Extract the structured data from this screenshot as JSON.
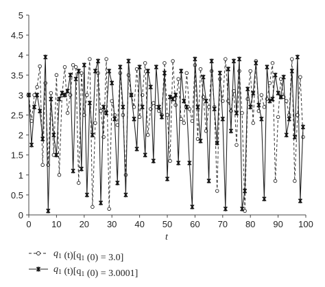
{
  "chart_data": {
    "type": "line",
    "title": "",
    "xlabel": "t",
    "ylabel": "",
    "xlim": [
      0,
      100
    ],
    "ylim": [
      0,
      5
    ],
    "xticks": [
      0,
      10,
      20,
      30,
      40,
      50,
      60,
      70,
      80,
      90,
      100
    ],
    "yticks": [
      0,
      0.5,
      1,
      1.5,
      2,
      2.5,
      3,
      3.5,
      4,
      4.5,
      5
    ],
    "grid": false,
    "legend_position": "bottom-left",
    "series": [
      {
        "name": "q1 (t)[q1 (0) = 3.0]",
        "style": "dashed-open-circle",
        "color": "#333333",
        "x": [
          0,
          1,
          2,
          3,
          4,
          5,
          6,
          7,
          8,
          9,
          10,
          11,
          12,
          13,
          14,
          15,
          16,
          17,
          18,
          19,
          20,
          21,
          22,
          23,
          24,
          25,
          26,
          27,
          28,
          29,
          30,
          31,
          32,
          33,
          34,
          35,
          36,
          37,
          38,
          39,
          40,
          41,
          42,
          43,
          44,
          45,
          46,
          47,
          48,
          49,
          50,
          51,
          52,
          53,
          54,
          55,
          56,
          57,
          58,
          59,
          60,
          61,
          62,
          63,
          64,
          65,
          66,
          67,
          68,
          69,
          70,
          71,
          72,
          73,
          74,
          75,
          76,
          77,
          78,
          79,
          80,
          81,
          82,
          83,
          84,
          85,
          86,
          87,
          88,
          89,
          90,
          91,
          92,
          93,
          94,
          95,
          96,
          97,
          98,
          99
        ],
        "y": [
          3.0,
          2.35,
          3.0,
          3.2,
          3.72,
          1.25,
          3.3,
          1.25,
          3.05,
          1.5,
          3.5,
          1.0,
          3.0,
          3.7,
          2.55,
          3.0,
          3.75,
          3.7,
          0.8,
          3.55,
          2.5,
          3.0,
          3.9,
          0.2,
          2.3,
          3.55,
          2.6,
          1.95,
          3.9,
          0.15,
          2.85,
          2.5,
          2.25,
          3.55,
          2.5,
          1.0,
          3.5,
          3.0,
          2.7,
          3.65,
          2.45,
          3.0,
          3.8,
          2.0,
          2.65,
          2.8,
          2.7,
          2.6,
          2.5,
          3.8,
          2.5,
          1.35,
          3.85,
          2.75,
          3.4,
          2.4,
          2.3,
          3.55,
          2.65,
          2.35,
          3.75,
          1.9,
          3.65,
          2.95,
          2.1,
          2.7,
          3.6,
          2.7,
          0.6,
          3.4,
          2.85,
          3.9,
          2.85,
          2.6,
          3.1,
          1.75,
          3.6,
          2.55,
          0.1,
          2.9,
          3.6,
          2.3,
          3.85,
          2.6,
          3.0,
          2.7,
          2.9,
          3.3,
          3.8,
          0.85,
          2.45,
          3.4,
          2.95,
          2.85,
          2.5,
          3.9,
          0.85,
          2.5,
          3.45,
          1.95
        ]
      },
      {
        "name": "q1 (t)[q1 (0) = 3.0001]",
        "style": "solid-star",
        "color": "#222222",
        "x": [
          0,
          1,
          2,
          3,
          4,
          5,
          6,
          7,
          8,
          9,
          10,
          11,
          12,
          13,
          14,
          15,
          16,
          17,
          18,
          19,
          20,
          21,
          22,
          23,
          24,
          25,
          26,
          27,
          28,
          29,
          30,
          31,
          32,
          33,
          34,
          35,
          36,
          37,
          38,
          39,
          40,
          41,
          42,
          43,
          44,
          45,
          46,
          47,
          48,
          49,
          50,
          51,
          52,
          53,
          54,
          55,
          56,
          57,
          58,
          59,
          60,
          61,
          62,
          63,
          64,
          65,
          66,
          67,
          68,
          69,
          70,
          71,
          72,
          73,
          74,
          75,
          76,
          77,
          78,
          79,
          80,
          81,
          82,
          83,
          84,
          85,
          86,
          87,
          88,
          89,
          90,
          91,
          92,
          93,
          94,
          95,
          96,
          97,
          98,
          99
        ],
        "y": [
          3.0,
          1.75,
          2.7,
          3.0,
          2.6,
          1.9,
          3.95,
          0.1,
          2.9,
          2.0,
          1.5,
          2.9,
          3.05,
          3.0,
          3.1,
          3.5,
          1.1,
          3.4,
          3.6,
          1.15,
          3.75,
          0.5,
          2.8,
          2.0,
          3.6,
          3.85,
          0.3,
          2.7,
          2.55,
          3.6,
          3.3,
          2.4,
          0.8,
          3.7,
          2.7,
          0.5,
          3.85,
          3.0,
          2.4,
          1.65,
          3.7,
          2.7,
          1.5,
          3.6,
          3.2,
          1.35,
          3.7,
          2.7,
          2.45,
          3.55,
          0.9,
          2.95,
          2.9,
          3.0,
          1.3,
          3.6,
          2.85,
          2.7,
          1.3,
          0.2,
          3.9,
          2.7,
          1.85,
          3.45,
          2.85,
          0.85,
          3.85,
          2.65,
          1.8,
          3.55,
          2.4,
          0.15,
          3.65,
          2.1,
          3.85,
          2.55,
          3.9,
          0.15,
          0.6,
          3.15,
          2.7,
          3.05,
          3.8,
          2.75,
          2.4,
          0.4,
          3.7,
          2.85,
          2.9,
          3.5,
          3.05,
          2.95,
          3.45,
          2.0,
          2.4,
          3.6,
          1.95,
          3.95,
          0.35,
          2.2
        ]
      }
    ],
    "legend": [
      {
        "prefix": "q",
        "sub": "1",
        "mid": " (t)[q",
        "sub2": "1",
        "suffix": " (0) = 3.0]"
      },
      {
        "prefix": "q",
        "sub": "1",
        "mid": " (t)[q",
        "sub2": "1",
        "suffix": " (0) = 3.0001]"
      }
    ]
  }
}
